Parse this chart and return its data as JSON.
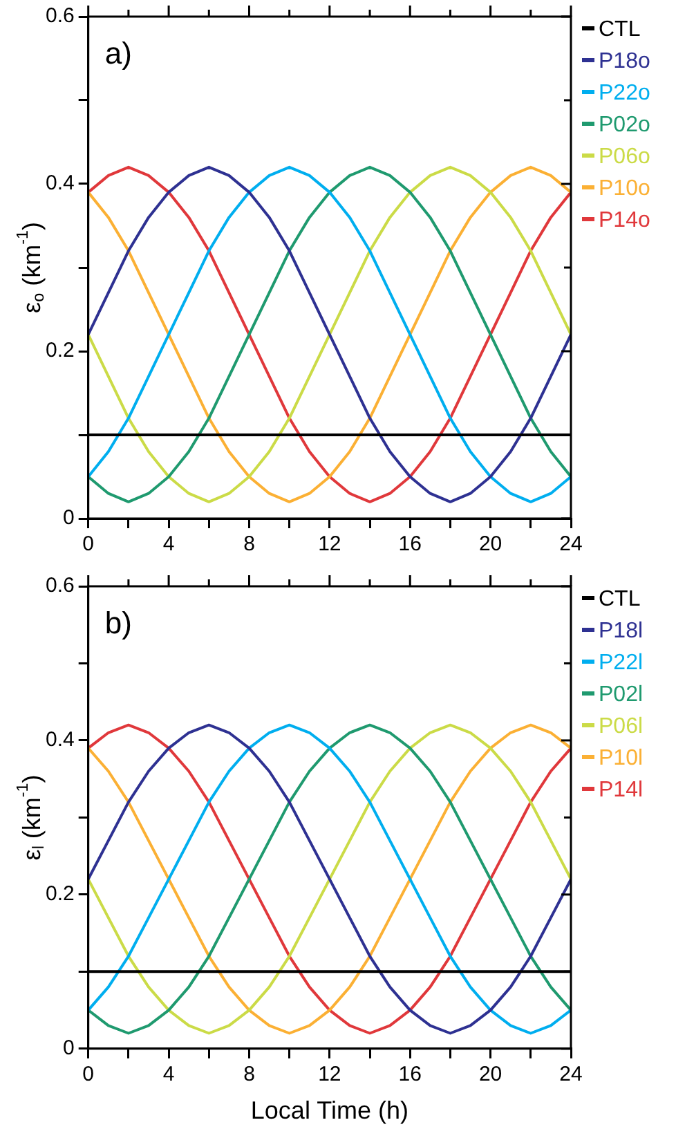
{
  "chart_data": [
    {
      "type": "line",
      "ylabel": "ε$_{o}$ (km$^{-1}$)",
      "annotations": [
        "a)"
      ],
      "legend": "right",
      "grid": false,
      "marker": "none",
      "line_style": "solid",
      "x": [
        0,
        1,
        2,
        3,
        4,
        5,
        6,
        7,
        8,
        9,
        10,
        11,
        12,
        13,
        14,
        15,
        16,
        17,
        18,
        19,
        20,
        21,
        22,
        23,
        24
      ],
      "xlim": [
        0,
        24
      ],
      "xticks": [
        0,
        {
          "value": 2,
          "label": null
        },
        4,
        {
          "value": 6,
          "label": null
        },
        8,
        {
          "value": 10,
          "label": null
        },
        12,
        {
          "value": 14,
          "label": null
        },
        16,
        {
          "value": 18,
          "label": null
        },
        20,
        {
          "value": 22,
          "label": null
        },
        24
      ],
      "ylim": [
        0,
        0.6
      ],
      "yticks": [
        0,
        {
          "value": 0.1,
          "label": null
        },
        {
          "value": 0.2,
          "label": "0.2"
        },
        {
          "value": 0.3,
          "label": null
        },
        {
          "value": 0.4,
          "label": "0.4"
        },
        {
          "value": 0.5,
          "label": null
        },
        {
          "value": 0.6,
          "label": "0.6"
        }
      ],
      "series": [
        {
          "name": "CTL",
          "color": "#000000",
          "values": [
            0.1,
            0.1,
            0.1,
            0.1,
            0.1,
            0.1,
            0.1,
            0.1,
            0.1,
            0.1,
            0.1,
            0.1,
            0.1,
            0.1,
            0.1,
            0.1,
            0.1,
            0.1,
            0.1,
            0.1,
            0.1,
            0.1,
            0.1,
            0.1,
            0.1
          ]
        },
        {
          "name": "P18o",
          "color": "#2e3192",
          "values": [
            0.22,
            0.27,
            0.32,
            0.36,
            0.39,
            0.41,
            0.42,
            0.41,
            0.39,
            0.36,
            0.32,
            0.27,
            0.22,
            0.17,
            0.12,
            0.08,
            0.05,
            0.03,
            0.02,
            0.03,
            0.05,
            0.08,
            0.12,
            0.17,
            0.22
          ]
        },
        {
          "name": "P22o",
          "color": "#00aeef",
          "values": [
            0.05,
            0.08,
            0.12,
            0.17,
            0.22,
            0.27,
            0.32,
            0.36,
            0.39,
            0.41,
            0.42,
            0.41,
            0.39,
            0.36,
            0.32,
            0.27,
            0.22,
            0.17,
            0.12,
            0.08,
            0.05,
            0.03,
            0.02,
            0.03,
            0.05
          ]
        },
        {
          "name": "P02o",
          "color": "#1f9a6f",
          "values": [
            0.05,
            0.03,
            0.02,
            0.03,
            0.05,
            0.08,
            0.12,
            0.17,
            0.22,
            0.27,
            0.32,
            0.36,
            0.39,
            0.41,
            0.42,
            0.41,
            0.39,
            0.36,
            0.32,
            0.27,
            0.22,
            0.17,
            0.12,
            0.08,
            0.05
          ]
        },
        {
          "name": "P06o",
          "color": "#cbdb47",
          "values": [
            0.22,
            0.17,
            0.12,
            0.08,
            0.05,
            0.03,
            0.02,
            0.03,
            0.05,
            0.08,
            0.12,
            0.17,
            0.22,
            0.27,
            0.32,
            0.36,
            0.39,
            0.41,
            0.42,
            0.41,
            0.39,
            0.36,
            0.32,
            0.27,
            0.22
          ]
        },
        {
          "name": "P10o",
          "color": "#fbb034",
          "values": [
            0.39,
            0.36,
            0.32,
            0.27,
            0.22,
            0.17,
            0.12,
            0.08,
            0.05,
            0.03,
            0.02,
            0.03,
            0.05,
            0.08,
            0.12,
            0.17,
            0.22,
            0.27,
            0.32,
            0.36,
            0.39,
            0.41,
            0.42,
            0.41,
            0.39
          ]
        },
        {
          "name": "P14o",
          "color": "#e0383b",
          "values": [
            0.39,
            0.41,
            0.42,
            0.41,
            0.39,
            0.36,
            0.32,
            0.27,
            0.22,
            0.17,
            0.12,
            0.08,
            0.05,
            0.03,
            0.02,
            0.03,
            0.05,
            0.08,
            0.12,
            0.17,
            0.22,
            0.27,
            0.32,
            0.36,
            0.39
          ]
        }
      ]
    },
    {
      "type": "line",
      "xlabel": "Local Time (h)",
      "ylabel": "ε$_{l}$ (km$^{-1}$)",
      "annotations": [
        "b)"
      ],
      "legend": "right",
      "grid": false,
      "marker": "none",
      "line_style": "solid",
      "x": [
        0,
        1,
        2,
        3,
        4,
        5,
        6,
        7,
        8,
        9,
        10,
        11,
        12,
        13,
        14,
        15,
        16,
        17,
        18,
        19,
        20,
        21,
        22,
        23,
        24
      ],
      "xlim": [
        0,
        24
      ],
      "xticks": [
        0,
        {
          "value": 2,
          "label": null
        },
        4,
        {
          "value": 6,
          "label": null
        },
        8,
        {
          "value": 10,
          "label": null
        },
        12,
        {
          "value": 14,
          "label": null
        },
        16,
        {
          "value": 18,
          "label": null
        },
        20,
        {
          "value": 22,
          "label": null
        },
        24
      ],
      "ylim": [
        0,
        0.6
      ],
      "yticks": [
        0,
        {
          "value": 0.1,
          "label": null
        },
        {
          "value": 0.2,
          "label": "0.2"
        },
        {
          "value": 0.3,
          "label": null
        },
        {
          "value": 0.4,
          "label": "0.4"
        },
        {
          "value": 0.5,
          "label": null
        },
        {
          "value": 0.6,
          "label": "0.6"
        }
      ],
      "series": [
        {
          "name": "CTL",
          "color": "#000000",
          "values": [
            0.1,
            0.1,
            0.1,
            0.1,
            0.1,
            0.1,
            0.1,
            0.1,
            0.1,
            0.1,
            0.1,
            0.1,
            0.1,
            0.1,
            0.1,
            0.1,
            0.1,
            0.1,
            0.1,
            0.1,
            0.1,
            0.1,
            0.1,
            0.1,
            0.1
          ]
        },
        {
          "name": "P18l",
          "color": "#2e3192",
          "values": [
            0.22,
            0.27,
            0.32,
            0.36,
            0.39,
            0.41,
            0.42,
            0.41,
            0.39,
            0.36,
            0.32,
            0.27,
            0.22,
            0.17,
            0.12,
            0.08,
            0.05,
            0.03,
            0.02,
            0.03,
            0.05,
            0.08,
            0.12,
            0.17,
            0.22
          ]
        },
        {
          "name": "P22l",
          "color": "#00aeef",
          "values": [
            0.05,
            0.08,
            0.12,
            0.17,
            0.22,
            0.27,
            0.32,
            0.36,
            0.39,
            0.41,
            0.42,
            0.41,
            0.39,
            0.36,
            0.32,
            0.27,
            0.22,
            0.17,
            0.12,
            0.08,
            0.05,
            0.03,
            0.02,
            0.03,
            0.05
          ]
        },
        {
          "name": "P02l",
          "color": "#1f9a6f",
          "values": [
            0.05,
            0.03,
            0.02,
            0.03,
            0.05,
            0.08,
            0.12,
            0.17,
            0.22,
            0.27,
            0.32,
            0.36,
            0.39,
            0.41,
            0.42,
            0.41,
            0.39,
            0.36,
            0.32,
            0.27,
            0.22,
            0.17,
            0.12,
            0.08,
            0.05
          ]
        },
        {
          "name": "P06l",
          "color": "#cbdb47",
          "values": [
            0.22,
            0.17,
            0.12,
            0.08,
            0.05,
            0.03,
            0.02,
            0.03,
            0.05,
            0.08,
            0.12,
            0.17,
            0.22,
            0.27,
            0.32,
            0.36,
            0.39,
            0.41,
            0.42,
            0.41,
            0.39,
            0.36,
            0.32,
            0.27,
            0.22
          ]
        },
        {
          "name": "P10l",
          "color": "#fbb034",
          "values": [
            0.39,
            0.36,
            0.32,
            0.27,
            0.22,
            0.17,
            0.12,
            0.08,
            0.05,
            0.03,
            0.02,
            0.03,
            0.05,
            0.08,
            0.12,
            0.17,
            0.22,
            0.27,
            0.32,
            0.36,
            0.39,
            0.41,
            0.42,
            0.41,
            0.39
          ]
        },
        {
          "name": "P14l",
          "color": "#e0383b",
          "values": [
            0.39,
            0.41,
            0.42,
            0.41,
            0.39,
            0.36,
            0.32,
            0.27,
            0.22,
            0.17,
            0.12,
            0.08,
            0.05,
            0.03,
            0.02,
            0.03,
            0.05,
            0.08,
            0.12,
            0.17,
            0.22,
            0.27,
            0.32,
            0.36,
            0.39
          ]
        }
      ]
    }
  ]
}
